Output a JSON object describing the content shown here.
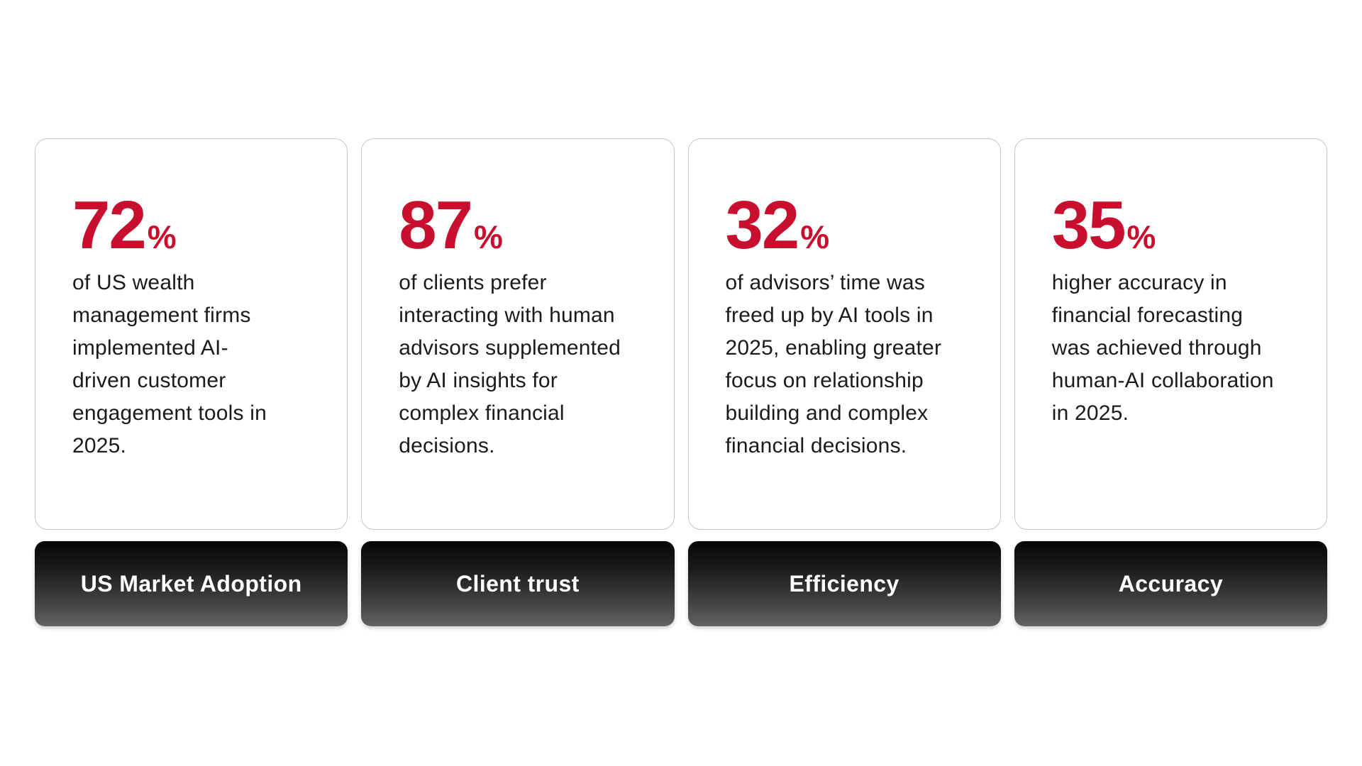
{
  "theme": {
    "accent_red": "#C8102E",
    "text_dark": "#1b1b1b",
    "card_border": "#c6c6c6",
    "button_top": "#070707",
    "button_bottom": "#636363",
    "button_text": "#ffffff"
  },
  "stats": [
    {
      "value": "72",
      "unit": "%",
      "description": "of US wealth\nmanagement firms\nimplemented AI-\ndriven customer\nengagement tools in\n2025.",
      "label": "US Market Adoption"
    },
    {
      "value": "87",
      "unit": "%",
      "description": "of clients prefer\ninteracting with human\nadvisors supplemented\nby AI insights for\ncomplex financial\ndecisions.",
      "label": "Client trust"
    },
    {
      "value": "32",
      "unit": "%",
      "description": "of advisors’ time was\nfreed up by AI tools in\n2025, enabling greater\nfocus on relationship\nbuilding and complex\nfinancial decisions.",
      "label": "Efficiency"
    },
    {
      "value": "35",
      "unit": "%",
      "description": "higher accuracy in\nfinancial forecasting\nwas achieved through\nhuman-AI collaboration\nin 2025.",
      "label": "Accuracy"
    }
  ]
}
